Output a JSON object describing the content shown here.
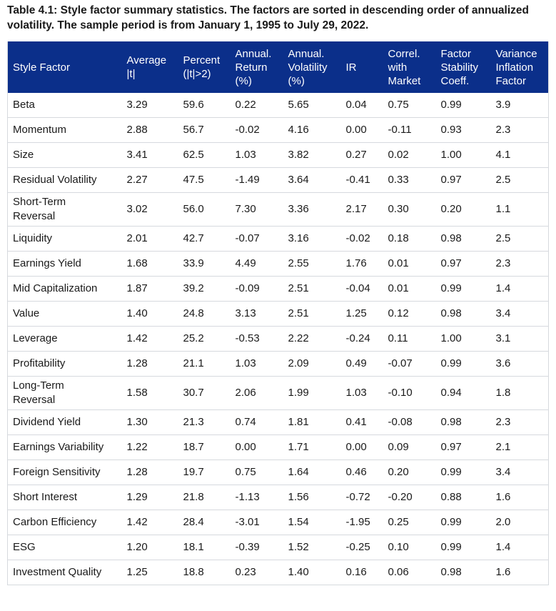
{
  "caption": "Table 4.1:  Style factor summary statistics. The factors are sorted in descending order of annualized volatility. The sample period is from January 1, 1995 to July 29, 2022.",
  "colors": {
    "header_bg": "#0b2f8a",
    "header_text": "#ffffff",
    "row_border": "#d6d9de"
  },
  "columns": [
    "Style Factor",
    "Average\n|t|",
    "Percent\n(|t|>2)",
    "Annual.\nReturn\n(%)",
    "Annual.\nVolatility\n(%)",
    "IR",
    "Correl.\nwith\nMarket",
    "Factor\nStability\nCoeff.",
    "Variance\nInflation\nFactor"
  ],
  "rows": [
    [
      "Beta",
      "3.29",
      "59.6",
      "0.22",
      "5.65",
      "0.04",
      "0.75",
      "0.99",
      "3.9"
    ],
    [
      "Momentum",
      "2.88",
      "56.7",
      "-0.02",
      "4.16",
      "0.00",
      "-0.11",
      "0.93",
      "2.3"
    ],
    [
      "Size",
      "3.41",
      "62.5",
      "1.03",
      "3.82",
      "0.27",
      "0.02",
      "1.00",
      "4.1"
    ],
    [
      "Residual Volatility",
      "2.27",
      "47.5",
      "-1.49",
      "3.64",
      "-0.41",
      "0.33",
      "0.97",
      "2.5"
    ],
    [
      "Short-Term\nReversal",
      "3.02",
      "56.0",
      "7.30",
      "3.36",
      "2.17",
      "0.30",
      "0.20",
      "1.1"
    ],
    [
      "Liquidity",
      "2.01",
      "42.7",
      "-0.07",
      "3.16",
      "-0.02",
      "0.18",
      "0.98",
      "2.5"
    ],
    [
      "Earnings Yield",
      "1.68",
      "33.9",
      "4.49",
      "2.55",
      "1.76",
      "0.01",
      "0.97",
      "2.3"
    ],
    [
      "Mid Capitalization",
      "1.87",
      "39.2",
      "-0.09",
      "2.51",
      "-0.04",
      "0.01",
      "0.99",
      "1.4"
    ],
    [
      "Value",
      "1.40",
      "24.8",
      "3.13",
      "2.51",
      "1.25",
      "0.12",
      "0.98",
      "3.4"
    ],
    [
      "Leverage",
      "1.42",
      "25.2",
      "-0.53",
      "2.22",
      "-0.24",
      "0.11",
      "1.00",
      "3.1"
    ],
    [
      "Profitability",
      "1.28",
      "21.1",
      "1.03",
      "2.09",
      "0.49",
      "-0.07",
      "0.99",
      "3.6"
    ],
    [
      "Long-Term\nReversal",
      "1.58",
      "30.7",
      "2.06",
      "1.99",
      "1.03",
      "-0.10",
      "0.94",
      "1.8"
    ],
    [
      "Dividend Yield",
      "1.30",
      "21.3",
      "0.74",
      "1.81",
      "0.41",
      "-0.08",
      "0.98",
      "2.3"
    ],
    [
      "Earnings Variability",
      "1.22",
      "18.7",
      "0.00",
      "1.71",
      "0.00",
      "0.09",
      "0.97",
      "2.1"
    ],
    [
      "Foreign Sensitivity",
      "1.28",
      "19.7",
      "0.75",
      "1.64",
      "0.46",
      "0.20",
      "0.99",
      "3.4"
    ],
    [
      "Short Interest",
      "1.29",
      "21.8",
      "-1.13",
      "1.56",
      "-0.72",
      "-0.20",
      "0.88",
      "1.6"
    ],
    [
      "Carbon Efficiency",
      "1.42",
      "28.4",
      "-3.01",
      "1.54",
      "-1.95",
      "0.25",
      "0.99",
      "2.0"
    ],
    [
      "ESG",
      "1.20",
      "18.1",
      "-0.39",
      "1.52",
      "-0.25",
      "0.10",
      "0.99",
      "1.4"
    ],
    [
      "Investment Quality",
      "1.25",
      "18.8",
      "0.23",
      "1.40",
      "0.16",
      "0.06",
      "0.98",
      "1.6"
    ]
  ]
}
